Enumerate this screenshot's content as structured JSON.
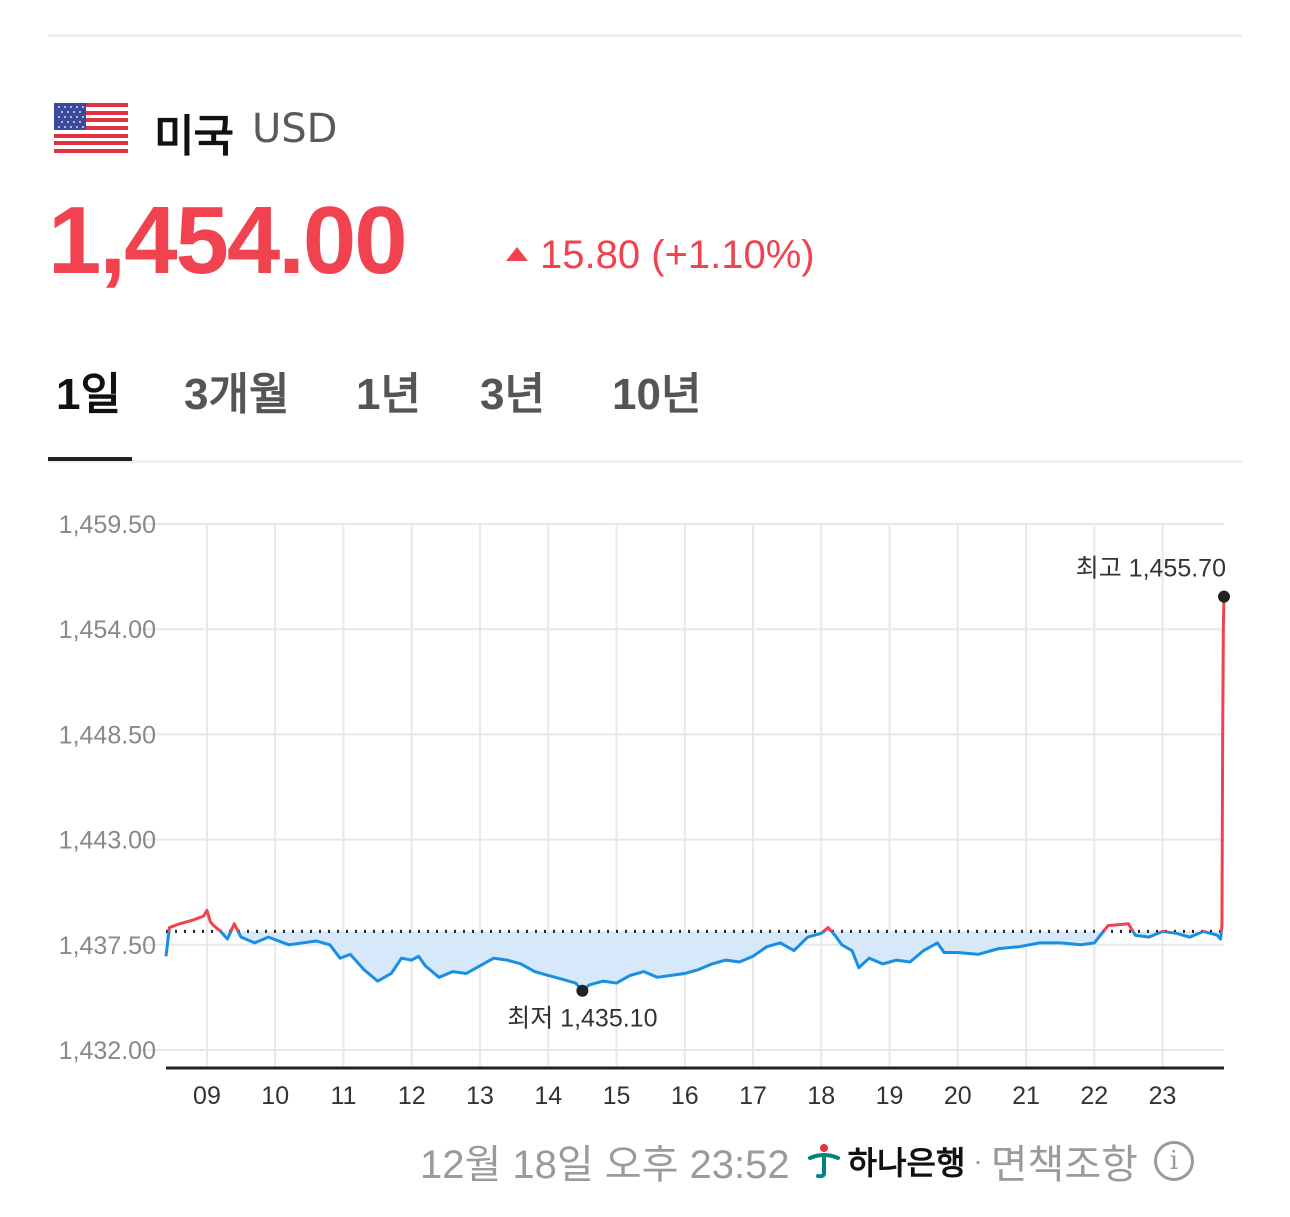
{
  "header": {
    "country": "미국",
    "currency_code": "USD",
    "flag_icon": "us-flag-icon"
  },
  "quote": {
    "price": "1,454.00",
    "change": "15.80 (+1.10%)",
    "direction": "up",
    "up_color": "#f0424f",
    "down_color": "#1a8ee0"
  },
  "tabs": [
    {
      "label": "1일",
      "active": true
    },
    {
      "label": "3개월",
      "active": false
    },
    {
      "label": "1년",
      "active": false
    },
    {
      "label": "3년",
      "active": false
    },
    {
      "label": "10년",
      "active": false
    }
  ],
  "chart_data": {
    "type": "line",
    "title": "",
    "xlabel": "",
    "ylabel": "",
    "ylim": [
      1432.0,
      1459.5
    ],
    "yticks": [
      "1,459.50",
      "1,454.00",
      "1,448.50",
      "1,443.00",
      "1,437.50",
      "1,432.00"
    ],
    "ytick_values": [
      1459.5,
      1454.0,
      1448.5,
      1443.0,
      1437.5,
      1432.0
    ],
    "xlim": [
      8.4,
      23.9
    ],
    "xticks": [
      "09",
      "10",
      "11",
      "12",
      "13",
      "14",
      "15",
      "16",
      "17",
      "18",
      "19",
      "20",
      "21",
      "22",
      "23"
    ],
    "xtick_values": [
      9,
      10,
      11,
      12,
      13,
      14,
      15,
      16,
      17,
      18,
      19,
      20,
      21,
      22,
      23
    ],
    "baseline": 1438.2,
    "grid": true,
    "series": [
      {
        "x": [
          8.4,
          8.45,
          8.6,
          8.8,
          8.95,
          9.0,
          9.05,
          9.1,
          9.2,
          9.3,
          9.4,
          9.5,
          9.7,
          9.9,
          10.2,
          10.6,
          10.8,
          10.95,
          11.1,
          11.3,
          11.5,
          11.7,
          11.85,
          12.0,
          12.1,
          12.2,
          12.4,
          12.6,
          12.8,
          13.0,
          13.2,
          13.4,
          13.6,
          13.8,
          14.0,
          14.2,
          14.4,
          14.5,
          14.6,
          14.8,
          15.0,
          15.2,
          15.4,
          15.6,
          15.8,
          16.0,
          16.2,
          16.4,
          16.6,
          16.8,
          17.0,
          17.2,
          17.4,
          17.6,
          17.8,
          18.0,
          18.1,
          18.2,
          18.3,
          18.45,
          18.55,
          18.7,
          18.9,
          19.1,
          19.3,
          19.5,
          19.7,
          19.8,
          20.0,
          20.3,
          20.6,
          20.9,
          21.2,
          21.5,
          21.8,
          22.0,
          22.2,
          22.5,
          22.6,
          22.8,
          23.0,
          23.2,
          23.4,
          23.6,
          23.8,
          23.85,
          23.87,
          23.88,
          23.89,
          23.9
        ],
        "y": [
          1436.9,
          1438.4,
          1438.6,
          1438.8,
          1439.0,
          1439.3,
          1438.7,
          1438.5,
          1438.2,
          1437.8,
          1438.6,
          1437.9,
          1437.6,
          1437.9,
          1437.5,
          1437.7,
          1437.5,
          1436.8,
          1437.0,
          1436.2,
          1435.6,
          1436.0,
          1436.8,
          1436.7,
          1436.9,
          1436.4,
          1435.8,
          1436.1,
          1436.0,
          1436.4,
          1436.8,
          1436.7,
          1436.5,
          1436.1,
          1435.9,
          1435.7,
          1435.5,
          1435.1,
          1435.4,
          1435.6,
          1435.5,
          1435.9,
          1436.1,
          1435.8,
          1435.9,
          1436.0,
          1436.2,
          1436.5,
          1436.7,
          1436.6,
          1436.9,
          1437.4,
          1437.6,
          1437.2,
          1437.9,
          1438.1,
          1438.4,
          1438.0,
          1437.5,
          1437.2,
          1436.3,
          1436.8,
          1436.5,
          1436.7,
          1436.6,
          1437.2,
          1437.6,
          1437.1,
          1437.1,
          1437.0,
          1437.3,
          1437.4,
          1437.6,
          1437.6,
          1437.5,
          1437.6,
          1438.5,
          1438.6,
          1438.0,
          1437.9,
          1438.2,
          1438.1,
          1437.9,
          1438.2,
          1438.0,
          1437.8,
          1438.5,
          1448.0,
          1454.0,
          1455.7
        ]
      }
    ],
    "annotations": [
      {
        "label": "최고 1,455.70",
        "x": 23.9,
        "y": 1455.7
      },
      {
        "label": "최저 1,435.10",
        "x": 14.5,
        "y": 1435.1
      }
    ],
    "colors": {
      "above": "#f0424f",
      "below": "#1a8ee0",
      "fill_below": "#d5e9fb",
      "grid": "#e8e8e8",
      "axis": "#222222",
      "tick_label": "#888888"
    }
  },
  "footer": {
    "timestamp": "12월 18일 오후 23:52",
    "bank": "하나은행",
    "bank_logo_icon": "hana-bank-logo-icon",
    "separator": "·",
    "disclaimer": "면책조항",
    "info_icon": "info-circle-icon"
  }
}
